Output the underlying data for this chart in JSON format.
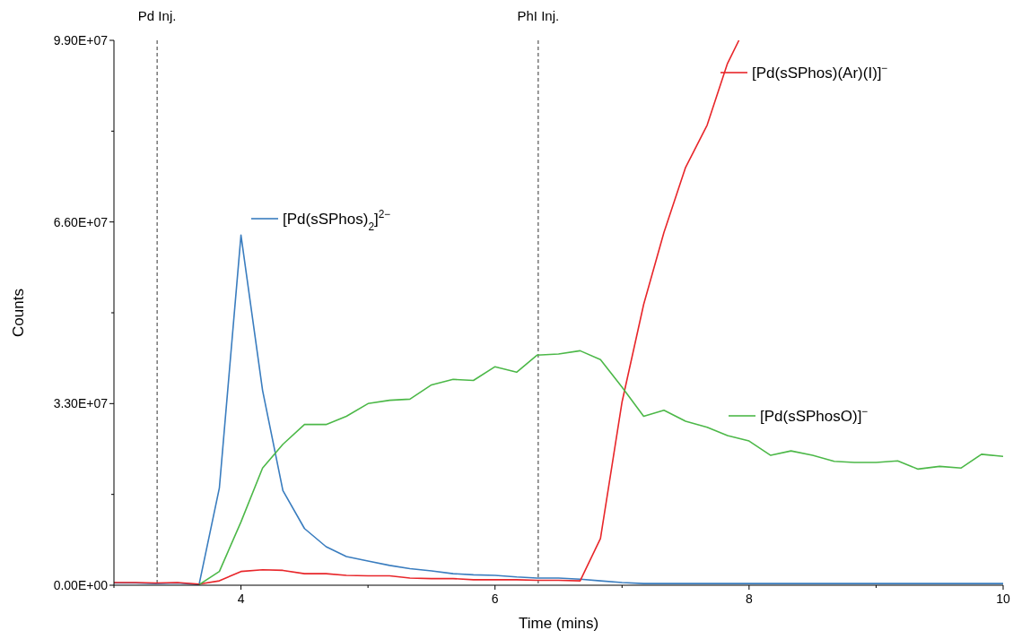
{
  "chart_data": {
    "type": "line",
    "xlabel": "Time (mins)",
    "ylabel": "Counts",
    "xlim": [
      3,
      10
    ],
    "ylim": [
      0,
      99000000
    ],
    "xticks": [
      {
        "value": 3,
        "label": null
      },
      4,
      {
        "value": 5,
        "label": null
      },
      6,
      {
        "value": 7,
        "label": null
      },
      8,
      {
        "value": 9,
        "label": null
      },
      10
    ],
    "yticks": [
      {
        "value": 0,
        "label": "0.00E+00"
      },
      {
        "value": 16500000,
        "label": null
      },
      {
        "value": 33000000,
        "label": "3.30E+07"
      },
      {
        "value": 49500000,
        "label": null
      },
      {
        "value": 66000000,
        "label": "6.60E+07"
      },
      {
        "value": 82500000,
        "label": null
      },
      {
        "value": 99000000,
        "label": "9.90E+07"
      }
    ],
    "grid": false,
    "legend": "right",
    "marker": "none",
    "line_style": "solid",
    "ref_lines": [
      {
        "axis": "x",
        "value": 3.34,
        "label": "Pd Inj.",
        "color": "#555555",
        "line_style": "dashed"
      },
      {
        "axis": "x",
        "value": 6.34,
        "label": "PhI Inj.",
        "color": "#555555",
        "line_style": "dashed"
      }
    ],
    "series": [
      {
        "name": "[Pd(sSPhos)$_{2}$]$^{2−}$",
        "color": "#3a7dbf",
        "x": [
          3,
          3.17,
          3.33,
          3.5,
          3.67,
          3.83,
          4,
          4.17,
          4.33,
          4.5,
          4.67,
          4.83,
          5,
          5.17,
          5.33,
          5.5,
          5.67,
          5.83,
          6,
          6.17,
          6.33,
          6.5,
          6.67,
          6.83,
          7,
          7.17,
          7.5,
          8,
          8.5,
          9,
          9.5,
          10
        ],
        "values": [
          400000,
          400000,
          300000,
          400000,
          100000,
          17700000,
          63600000,
          35400000,
          17200000,
          10300000,
          7000000,
          5200000,
          4400000,
          3600000,
          3000000,
          2600000,
          2100000,
          1900000,
          1800000,
          1500000,
          1300000,
          1300000,
          1100000,
          800000,
          500000,
          300000,
          300000,
          300000,
          300000,
          300000,
          300000,
          300000
        ]
      },
      {
        "name": "[Pd(sSPhos)(Ar)(I)]$^{−}$",
        "color": "#e8262a",
        "x": [
          3,
          3.17,
          3.33,
          3.5,
          3.67,
          3.83,
          4,
          4.17,
          4.33,
          4.5,
          4.67,
          4.83,
          5,
          5.17,
          5.33,
          5.5,
          5.67,
          5.83,
          6,
          6.17,
          6.33,
          6.5,
          6.67,
          6.83,
          7,
          7.17,
          7.33,
          7.5,
          7.67,
          7.83,
          7.92
        ],
        "values": [
          500000,
          500000,
          400000,
          500000,
          200000,
          800000,
          2500000,
          2800000,
          2700000,
          2100000,
          2100000,
          1800000,
          1700000,
          1700000,
          1300000,
          1200000,
          1200000,
          1000000,
          1000000,
          1000000,
          900000,
          900000,
          800000,
          8500000,
          33300000,
          51000000,
          64100000,
          75900000,
          83600000,
          94800000,
          99000000
        ]
      },
      {
        "name": "[Pd(sSPhosO)]$^{−}$",
        "color": "#4cb848",
        "x": [
          3.67,
          3.83,
          4,
          4.17,
          4.33,
          4.5,
          4.67,
          4.83,
          5,
          5.17,
          5.33,
          5.5,
          5.67,
          5.83,
          6,
          6.17,
          6.33,
          6.5,
          6.67,
          6.83,
          7,
          7.17,
          7.33,
          7.5,
          7.67,
          7.83,
          8,
          8.17,
          8.33,
          8.5,
          8.67,
          8.83,
          9,
          9.17,
          9.33,
          9.5,
          9.67,
          9.83,
          10
        ],
        "values": [
          100000,
          2500000,
          11500000,
          21300000,
          25600000,
          29200000,
          29200000,
          30700000,
          33000000,
          33600000,
          33800000,
          36400000,
          37400000,
          37200000,
          39700000,
          38700000,
          41800000,
          42000000,
          42600000,
          41000000,
          36000000,
          30700000,
          31800000,
          29800000,
          28700000,
          27200000,
          26200000,
          23600000,
          24400000,
          23600000,
          22500000,
          22300000,
          22300000,
          22600000,
          21100000,
          21600000,
          21300000,
          23800000,
          23400000
        ]
      }
    ]
  }
}
